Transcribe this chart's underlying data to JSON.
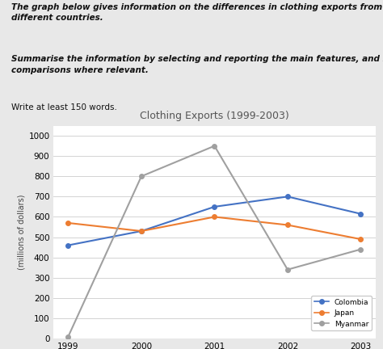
{
  "title": "Clothing Exports (1999-2003)",
  "ylabel": "(millions of dollars)",
  "years": [
    1999,
    2000,
    2001,
    2002,
    2003
  ],
  "colombia": [
    460,
    530,
    650,
    700,
    615
  ],
  "japan": [
    570,
    530,
    600,
    560,
    490
  ],
  "myanmar": [
    10,
    800,
    950,
    340,
    440
  ],
  "colombia_color": "#4472c4",
  "japan_color": "#ed7d31",
  "myanmar_color": "#a0a0a0",
  "ylim": [
    0,
    1050
  ],
  "yticks": [
    0,
    100,
    200,
    300,
    400,
    500,
    600,
    700,
    800,
    900,
    1000
  ],
  "background_color": "#e8e8e8",
  "chart_bg": "#ffffff",
  "text_header1": "The graph below gives information on the differences in clothing exports from three\ndifferent countries.",
  "text_header2": "Summarise the information by selecting and reporting the main features, and make\ncomparisons where relevant.",
  "text_header3": "Write at least 150 words.",
  "legend_labels": [
    "Colombia",
    "Japan",
    "Myanmar"
  ],
  "marker": "o",
  "linewidth": 1.5,
  "markersize": 4
}
